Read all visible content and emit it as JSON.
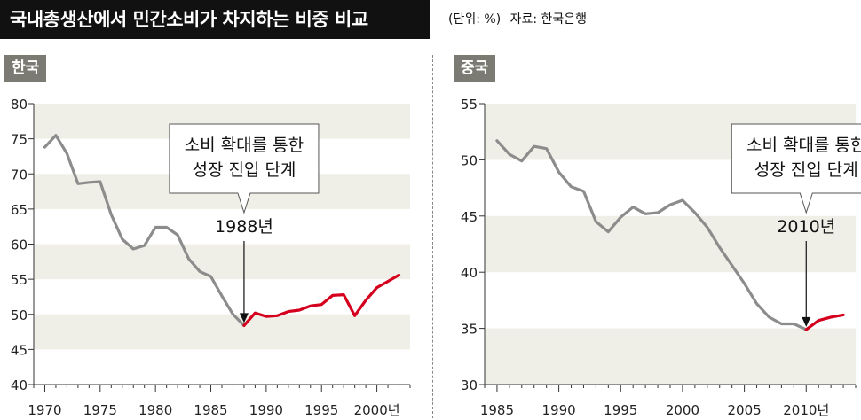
{
  "header": {
    "title": "국내총생산에서 민간소비가 차지하는 비중 비교",
    "unit": "(단위: %)",
    "source": "자료: 한국은행"
  },
  "colors": {
    "before": "#8c8c8c",
    "after": "#d4001e",
    "band": "#f0efe7",
    "tab": "#7b7b73"
  },
  "chart_data": [
    {
      "type": "line",
      "panel_label": "한국",
      "xlim": [
        1969,
        2003
      ],
      "ylim": [
        40,
        80
      ],
      "yticks": [
        40,
        45,
        50,
        55,
        60,
        65,
        70,
        75,
        80
      ],
      "xtick_labels": [
        "1970",
        "1975",
        "1980",
        "1985",
        "1990",
        "1995",
        "2000년"
      ],
      "xtick_values": [
        1970,
        1975,
        1980,
        1985,
        1990,
        1995,
        2000
      ],
      "x": [
        1970,
        1971,
        1972,
        1973,
        1974,
        1975,
        1976,
        1977,
        1978,
        1979,
        1980,
        1981,
        1982,
        1983,
        1984,
        1985,
        1986,
        1987,
        1988,
        1989,
        1990,
        1991,
        1992,
        1993,
        1994,
        1995,
        1996,
        1997,
        1998,
        1999,
        2000,
        2001,
        2002
      ],
      "y": [
        73.8,
        75.5,
        72.9,
        68.6,
        68.8,
        68.9,
        64.2,
        60.7,
        59.3,
        59.8,
        62.4,
        62.4,
        61.3,
        57.9,
        56.1,
        55.4,
        52.6,
        50.0,
        48.4,
        50.2,
        49.7,
        49.8,
        50.4,
        50.6,
        51.2,
        51.4,
        52.7,
        52.8,
        49.8,
        52.0,
        53.8,
        54.7,
        55.6
      ],
      "highlight_from": 1988,
      "annotation": {
        "callout": [
          "소비 확대를 통한",
          "성장 진입 단계"
        ],
        "year_label": "1988년",
        "x": 1988
      }
    },
    {
      "type": "line",
      "panel_label": "중국",
      "xlim": [
        1984,
        2014
      ],
      "ylim": [
        30,
        55
      ],
      "yticks": [
        30,
        35,
        40,
        45,
        50,
        55
      ],
      "xtick_labels": [
        "1985",
        "1990",
        "1995",
        "2000",
        "2005",
        "2010년"
      ],
      "xtick_values": [
        1985,
        1990,
        1995,
        2000,
        2005,
        2010
      ],
      "x": [
        1985,
        1986,
        1987,
        1988,
        1989,
        1990,
        1991,
        1992,
        1993,
        1994,
        1995,
        1996,
        1997,
        1998,
        1999,
        2000,
        2001,
        2002,
        2003,
        2004,
        2005,
        2006,
        2007,
        2008,
        2009,
        2010,
        2011,
        2012,
        2013
      ],
      "y": [
        51.7,
        50.5,
        49.9,
        51.2,
        51.0,
        48.9,
        47.6,
        47.2,
        44.5,
        43.6,
        44.9,
        45.8,
        45.2,
        45.3,
        46.0,
        46.4,
        45.3,
        44.0,
        42.2,
        40.6,
        39.0,
        37.2,
        36.0,
        35.4,
        35.4,
        34.9,
        35.7,
        36.0,
        36.2
      ],
      "highlight_from": 2010,
      "annotation": {
        "callout": [
          "소비 확대를 통한",
          "성장 진입 단계"
        ],
        "year_label": "2010년",
        "x": 2010
      }
    }
  ]
}
